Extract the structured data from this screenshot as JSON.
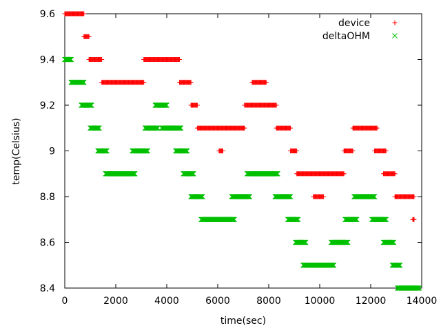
{
  "chart_data": {
    "type": "scatter",
    "xlabel": "time(sec)",
    "ylabel": "temp(Celsius)",
    "xlim": [
      0,
      14000
    ],
    "ylim": [
      8.4,
      9.6
    ],
    "x_ticks": [
      0,
      2000,
      4000,
      6000,
      8000,
      10000,
      12000,
      14000
    ],
    "x_tick_labels": [
      "0",
      "2000",
      "4000",
      "6000",
      "8000",
      "10000",
      "12000",
      "14000"
    ],
    "y_ticks": [
      8.4,
      8.6,
      8.8,
      9.0,
      9.2,
      9.4,
      9.6
    ],
    "y_tick_labels": [
      "8.4",
      "8.6",
      "8.8",
      "9",
      "9.2",
      "9.4",
      "9.6"
    ],
    "grid": false,
    "legend_position": "top-right",
    "series": [
      {
        "name": "device",
        "marker": "plus",
        "color": "#ff0000",
        "runs": [
          {
            "x0": 0,
            "x1": 750,
            "y": 9.6
          },
          {
            "x0": 750,
            "x1": 950,
            "y": 9.5
          },
          {
            "x0": 950,
            "x1": 1450,
            "y": 9.4
          },
          {
            "x0": 1450,
            "x1": 3100,
            "y": 9.3
          },
          {
            "x0": 3100,
            "x1": 4500,
            "y": 9.4
          },
          {
            "x0": 4500,
            "x1": 4950,
            "y": 9.3
          },
          {
            "x0": 4950,
            "x1": 5200,
            "y": 9.2
          },
          {
            "x0": 5200,
            "x1": 7050,
            "y": 9.1
          },
          {
            "x0": 6050,
            "x1": 6200,
            "y": 9.0
          },
          {
            "x0": 7050,
            "x1": 8300,
            "y": 9.2
          },
          {
            "x0": 7350,
            "x1": 7900,
            "y": 9.3
          },
          {
            "x0": 8300,
            "x1": 8850,
            "y": 9.1
          },
          {
            "x0": 8850,
            "x1": 9100,
            "y": 9.0
          },
          {
            "x0": 9100,
            "x1": 10950,
            "y": 8.9
          },
          {
            "x0": 9750,
            "x1": 10150,
            "y": 8.8
          },
          {
            "x0": 10950,
            "x1": 11300,
            "y": 9.0
          },
          {
            "x0": 11300,
            "x1": 12250,
            "y": 9.1
          },
          {
            "x0": 12150,
            "x1": 12600,
            "y": 9.0
          },
          {
            "x0": 12500,
            "x1": 12950,
            "y": 8.9
          },
          {
            "x0": 12950,
            "x1": 13700,
            "y": 8.8
          },
          {
            "x0": 13650,
            "x1": 13700,
            "y": 8.7
          }
        ]
      },
      {
        "name": "deltaOHM",
        "marker": "cross",
        "color": "#00c000",
        "runs": [
          {
            "x0": 0,
            "x1": 250,
            "y": 9.4
          },
          {
            "x0": 250,
            "x1": 750,
            "y": 9.3
          },
          {
            "x0": 650,
            "x1": 1050,
            "y": 9.2
          },
          {
            "x0": 1000,
            "x1": 1350,
            "y": 9.1
          },
          {
            "x0": 1300,
            "x1": 1650,
            "y": 9.0
          },
          {
            "x0": 1600,
            "x1": 2750,
            "y": 8.9
          },
          {
            "x0": 2650,
            "x1": 3250,
            "y": 9.0
          },
          {
            "x0": 3150,
            "x1": 3650,
            "y": 9.1
          },
          {
            "x0": 3550,
            "x1": 4000,
            "y": 9.2
          },
          {
            "x0": 3800,
            "x1": 4550,
            "y": 9.1
          },
          {
            "x0": 4350,
            "x1": 4800,
            "y": 9.0
          },
          {
            "x0": 4650,
            "x1": 5050,
            "y": 8.9
          },
          {
            "x0": 4950,
            "x1": 5400,
            "y": 8.8
          },
          {
            "x0": 5350,
            "x1": 6650,
            "y": 8.7
          },
          {
            "x0": 6550,
            "x1": 7250,
            "y": 8.8
          },
          {
            "x0": 7150,
            "x1": 8350,
            "y": 8.9
          },
          {
            "x0": 8250,
            "x1": 8850,
            "y": 8.8
          },
          {
            "x0": 8750,
            "x1": 9150,
            "y": 8.7
          },
          {
            "x0": 9050,
            "x1": 9450,
            "y": 8.6
          },
          {
            "x0": 9350,
            "x1": 10550,
            "y": 8.5
          },
          {
            "x0": 10450,
            "x1": 11100,
            "y": 8.6
          },
          {
            "x0": 11000,
            "x1": 11450,
            "y": 8.7
          },
          {
            "x0": 11350,
            "x1": 12150,
            "y": 8.8
          },
          {
            "x0": 12050,
            "x1": 12600,
            "y": 8.7
          },
          {
            "x0": 12500,
            "x1": 12900,
            "y": 8.6
          },
          {
            "x0": 12850,
            "x1": 13150,
            "y": 8.5
          },
          {
            "x0": 13050,
            "x1": 13900,
            "y": 8.4
          }
        ]
      }
    ]
  }
}
